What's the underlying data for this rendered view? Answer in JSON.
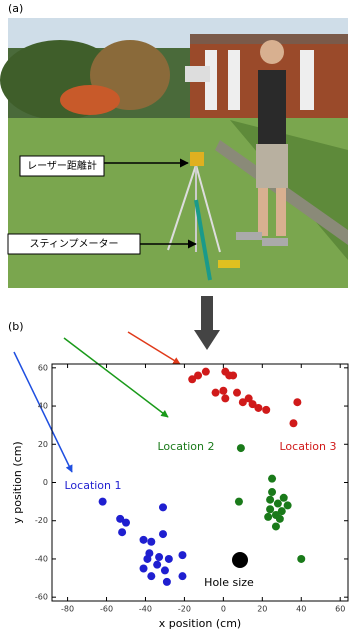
{
  "photo": {
    "panel_label": "(a)",
    "labels": [
      "レーザー距離計",
      "スティンプメーター"
    ]
  },
  "chart_data": {
    "type": "scatter",
    "panel_label": "(b)",
    "x_label": "x position  (cm)",
    "y_label": "y position  (cm)",
    "xlim": [
      -88,
      64
    ],
    "ylim": [
      -62,
      62
    ],
    "xticks": [
      -80,
      -60,
      -40,
      -20,
      0,
      20,
      40,
      60
    ],
    "yticks": [
      -60,
      -40,
      -20,
      0,
      20,
      40,
      60
    ],
    "series": [
      {
        "name": "Location 1",
        "color": "#1f1fd0",
        "x": [
          -62,
          -53,
          -50,
          -52,
          -41,
          -37,
          -31,
          -31,
          -38,
          -39,
          -33,
          -34,
          -30,
          -37,
          -29,
          -41,
          -21,
          -21,
          -28
        ],
        "values": [
          -10,
          -19,
          -21,
          -26,
          -30,
          -31,
          -27,
          -13,
          -37,
          -40,
          -39,
          -43,
          -46,
          -49,
          -52,
          -45,
          -38,
          -49,
          -40
        ]
      },
      {
        "name": "Location 2",
        "color": "#1a7a1a",
        "x": [
          9,
          8,
          25,
          25,
          24,
          28,
          30,
          27,
          23,
          29,
          27,
          31,
          33,
          24,
          40
        ],
        "values": [
          18,
          -10,
          2,
          -5,
          -9,
          -11,
          -15,
          -17,
          -18,
          -19,
          -23,
          -8,
          -12,
          -14,
          -40
        ]
      },
      {
        "name": "Location 3",
        "color": "#d01a1a",
        "x": [
          -16,
          -13,
          -9,
          1,
          5,
          -4,
          0,
          1,
          7,
          10,
          13,
          15,
          18,
          22,
          3,
          38,
          36
        ],
        "values": [
          54,
          56,
          58,
          58,
          56,
          47,
          48,
          44,
          47,
          42,
          44,
          41,
          39,
          38,
          56,
          42,
          31
        ]
      }
    ],
    "hole_label": "Hole size"
  }
}
